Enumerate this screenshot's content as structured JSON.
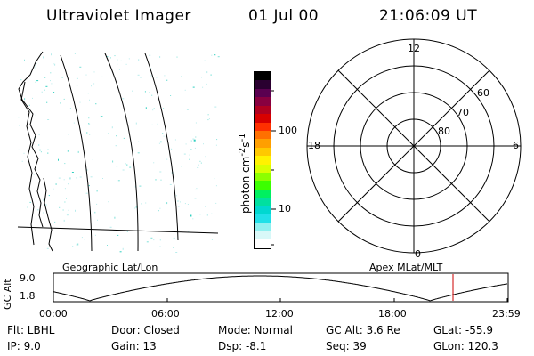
{
  "header": {
    "title": "Ultraviolet Imager",
    "date": "01 Jul 00",
    "time": "21:06:09 UT"
  },
  "colorbar": {
    "label_html": "photon cm<sup>-2</sup>s<sup>-1</sup>",
    "label_text": "photon cm-2s-1",
    "ticks": [
      "100",
      "10"
    ],
    "colors": [
      "#000000",
      "#2a0030",
      "#5a0050",
      "#880040",
      "#b00020",
      "#d80000",
      "#ff3000",
      "#ff7000",
      "#ff9f00",
      "#ffc800",
      "#fff200",
      "#d8ff00",
      "#8cff00",
      "#3cff00",
      "#00f060",
      "#00e0a0",
      "#00d8d0",
      "#20e0e8",
      "#90f0f0",
      "#d8f8f8",
      "#ffffff"
    ]
  },
  "polar": {
    "mlt_labels": {
      "top": "12",
      "left": "18",
      "right": "6",
      "bottom": "0"
    },
    "lat_labels": [
      "60",
      "70",
      "80"
    ]
  },
  "panel_labels": {
    "left": "Geographic Lat/Lon",
    "right": "Apex MLat/MLT"
  },
  "orbit_plot": {
    "ylabel": "GC Alt",
    "yticks": [
      "9.0",
      "1.8"
    ],
    "xticks": [
      "00:00",
      "06:00",
      "12:00",
      "18:00",
      "23:59"
    ],
    "accent": "#cc0000"
  },
  "info": {
    "filter": "Flt: LBHL",
    "ip": "IP:  9.0",
    "door": "Door: Closed",
    "gain": "Gain: 13",
    "mode": "Mode: Normal",
    "dsp": "Dsp:    -8.1",
    "gc_alt": "GC Alt: 3.6 Re",
    "seq": "Seq: 39",
    "glat": "GLat: -55.9",
    "glon": "GLon: 120.3"
  }
}
